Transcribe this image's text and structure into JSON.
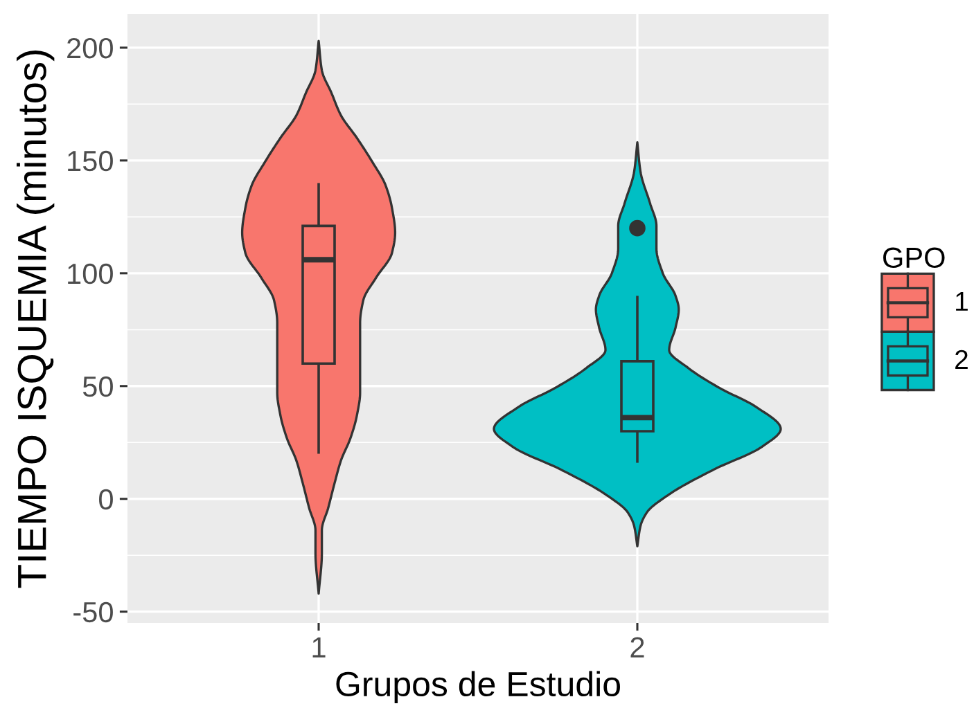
{
  "chart_data": {
    "type": "box",
    "xlabel": "Grupos de Estudio",
    "ylabel": "TIEMPO ISQUEMIA (minutos)",
    "legend_title": "GPO",
    "legend": "right",
    "grid": true,
    "x": [
      1,
      2
    ],
    "xlim": [
      0.4,
      2.6
    ],
    "xticks": [
      1,
      2
    ],
    "ylim": [
      -55,
      215
    ],
    "yticks": [
      -50,
      0,
      50,
      100,
      150,
      200
    ],
    "series": [
      {
        "type": "area",
        "color": "#f8766d",
        "x": [
          1.0,
          1.01,
          1.01,
          1.03,
          1.05,
          1.07,
          1.1,
          1.12,
          1.13,
          1.13,
          1.13,
          1.13,
          1.14,
          1.18,
          1.23,
          1.24,
          1.23,
          1.21,
          1.17,
          1.12,
          1.07,
          1.04,
          1.01,
          1.0,
          0.99,
          0.96,
          0.93,
          0.88,
          0.83,
          0.79,
          0.77,
          0.76,
          0.77,
          0.82,
          0.86,
          0.87,
          0.87,
          0.87,
          0.87,
          0.88,
          0.9,
          0.93,
          0.95,
          0.97,
          0.99,
          0.99
        ],
        "values": [
          -42,
          -24,
          -14,
          -4,
          7,
          17,
          27,
          37,
          47,
          58,
          68,
          78,
          88,
          98,
          109,
          118,
          129,
          139,
          149,
          160,
          170,
          180,
          190,
          203,
          190,
          180,
          170,
          160,
          149,
          139,
          129,
          118,
          109,
          98,
          88,
          78,
          68,
          58,
          47,
          37,
          27,
          17,
          7,
          -4,
          -14,
          -24
        ]
      },
      {
        "name": "1",
        "color": "#f8766d",
        "boxes": [
          {
            "low": 20,
            "q1": 60,
            "median": 106,
            "q3": 121,
            "high": 140
          },
          null
        ]
      },
      {
        "type": "area",
        "color": "#00bfc4",
        "x": [
          2.0,
          2.01,
          2.03,
          2.1,
          2.24,
          2.39,
          2.45,
          2.37,
          2.26,
          2.16,
          2.1,
          2.12,
          2.13,
          2.12,
          2.08,
          2.06,
          2.06,
          2.04,
          2.01,
          2.0,
          1.99,
          1.96,
          1.94,
          1.94,
          1.92,
          1.88,
          1.87,
          1.88,
          1.9,
          1.84,
          1.74,
          1.63,
          1.55,
          1.61,
          1.76,
          1.9,
          1.97,
          1.99
        ],
        "values": [
          -21,
          -12,
          -6,
          2,
          13,
          23,
          31,
          41,
          49,
          58,
          66,
          76,
          84,
          90,
          100,
          111,
          121,
          131,
          145,
          158,
          145,
          131,
          121,
          111,
          100,
          90,
          84,
          76,
          66,
          58,
          49,
          41,
          31,
          23,
          13,
          2,
          -6,
          -12
        ]
      },
      {
        "name": "2",
        "color": "#00bfc4",
        "boxes": [
          null,
          {
            "low": 16,
            "q1": 30,
            "median": 36,
            "q3": 61,
            "high": 90,
            "outliers": [
              120
            ]
          }
        ]
      }
    ]
  }
}
